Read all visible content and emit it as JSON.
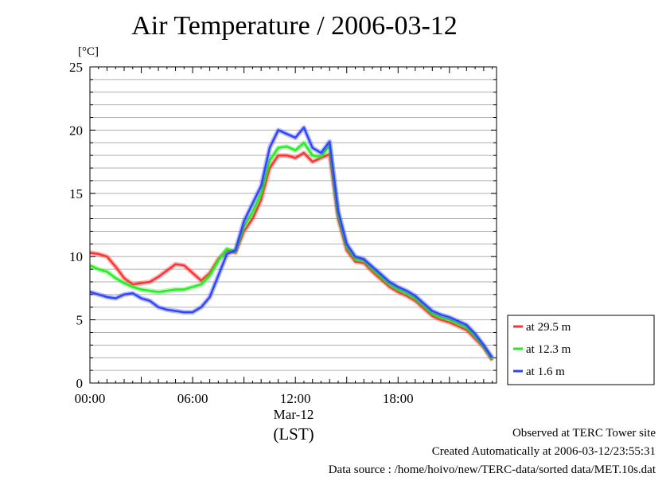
{
  "chart_data": {
    "type": "line",
    "title": "Air Temperature / 2006-03-12",
    "ylabel": "[°C]",
    "xlabel": "(LST)",
    "date_label": "Mar-12",
    "ylim": [
      0,
      25
    ],
    "xlim": [
      "00:00",
      "23:30"
    ],
    "grid": true,
    "legend_placement": "right",
    "y_ticks": [
      "0",
      "5",
      "10",
      "15",
      "20",
      "25"
    ],
    "x_ticks": [
      "00:00",
      "06:00",
      "12:00",
      "18:00"
    ],
    "x_hours": [
      0,
      0.5,
      1,
      1.5,
      2,
      2.5,
      3,
      3.5,
      4,
      4.5,
      5,
      5.5,
      6,
      6.5,
      7,
      7.5,
      8,
      8.5,
      9,
      9.5,
      10,
      10.5,
      11,
      11.5,
      12,
      12.5,
      13,
      13.5,
      14,
      14.5,
      15,
      15.5,
      16,
      16.5,
      17,
      17.5,
      18,
      18.5,
      19,
      19.5,
      20,
      20.5,
      21,
      21.5,
      22,
      22.5,
      23,
      23.5
    ],
    "series": [
      {
        "name": "at 29.5 m",
        "color": "#ff3333",
        "values": [
          10.3,
          10.2,
          10.0,
          9.2,
          8.3,
          7.8,
          7.9,
          8.0,
          8.4,
          8.9,
          9.4,
          9.3,
          8.7,
          8.1,
          8.7,
          9.8,
          10.5,
          10.3,
          12.0,
          13.0,
          14.5,
          17.0,
          18.0,
          18.0,
          17.8,
          18.2,
          17.5,
          17.8,
          18.1,
          13.0,
          10.5,
          9.6,
          9.5,
          8.8,
          8.2,
          7.6,
          7.2,
          6.9,
          6.5,
          5.9,
          5.3,
          5.0,
          4.8,
          4.5,
          4.2,
          3.5,
          2.8,
          1.8
        ]
      },
      {
        "name": "at 12.3 m",
        "color": "#22ee22",
        "values": [
          9.3,
          9.0,
          8.8,
          8.3,
          7.9,
          7.6,
          7.4,
          7.3,
          7.2,
          7.3,
          7.4,
          7.4,
          7.6,
          7.8,
          8.5,
          9.7,
          10.6,
          10.4,
          12.4,
          13.5,
          15.0,
          17.6,
          18.6,
          18.7,
          18.4,
          19.0,
          18.0,
          17.9,
          18.8,
          13.3,
          10.8,
          9.8,
          9.7,
          9.0,
          8.4,
          7.8,
          7.4,
          7.1,
          6.7,
          6.1,
          5.5,
          5.2,
          5.0,
          4.7,
          4.4,
          3.7,
          2.9,
          1.9
        ]
      },
      {
        "name": "at 1.6 m",
        "color": "#3344ff",
        "values": [
          7.2,
          7.0,
          6.8,
          6.7,
          7.0,
          7.1,
          6.7,
          6.5,
          6.0,
          5.8,
          5.7,
          5.6,
          5.6,
          6.0,
          6.8,
          8.5,
          10.2,
          10.5,
          12.8,
          14.2,
          15.6,
          18.6,
          20.0,
          19.7,
          19.4,
          20.2,
          18.6,
          18.2,
          19.1,
          13.6,
          11.0,
          10.0,
          9.8,
          9.2,
          8.6,
          8.0,
          7.6,
          7.3,
          6.9,
          6.3,
          5.7,
          5.4,
          5.2,
          4.9,
          4.6,
          3.9,
          3.0,
          2.0
        ]
      }
    ]
  },
  "footer": {
    "observed": "Observed at TERC Tower site",
    "created": "Created Automatically at 2006-03-12/23:55:31",
    "source": "Data source : /home/hoivo/new/TERC-data/sorted  data/MET.10s.dat"
  }
}
